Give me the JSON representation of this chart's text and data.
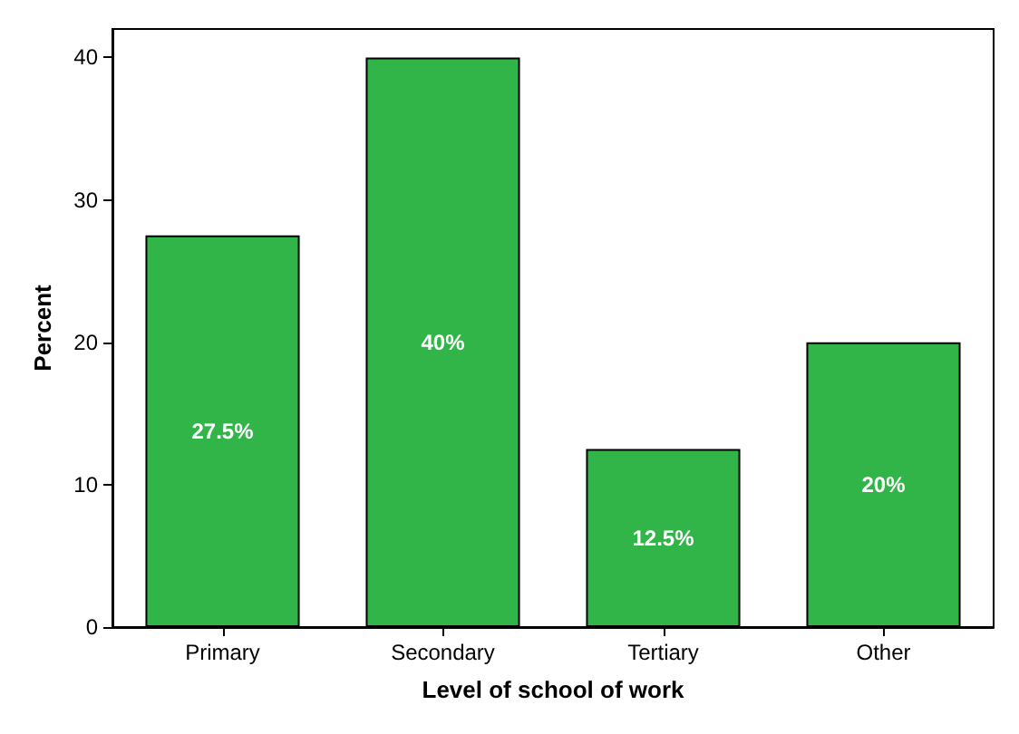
{
  "chart_data": {
    "type": "bar",
    "xlabel": "Level of school of work",
    "ylabel": "Percent",
    "categories": [
      "Primary",
      "Secondary",
      "Tertiary",
      "Other"
    ],
    "values": [
      27.5,
      40,
      12.5,
      20
    ],
    "value_labels": [
      "27.5%",
      "40%",
      "12.5%",
      "20%"
    ],
    "color": "#32b548",
    "ylim": [
      0,
      42
    ],
    "yticks": [
      0,
      10,
      20,
      30,
      40
    ],
    "grid": false
  }
}
